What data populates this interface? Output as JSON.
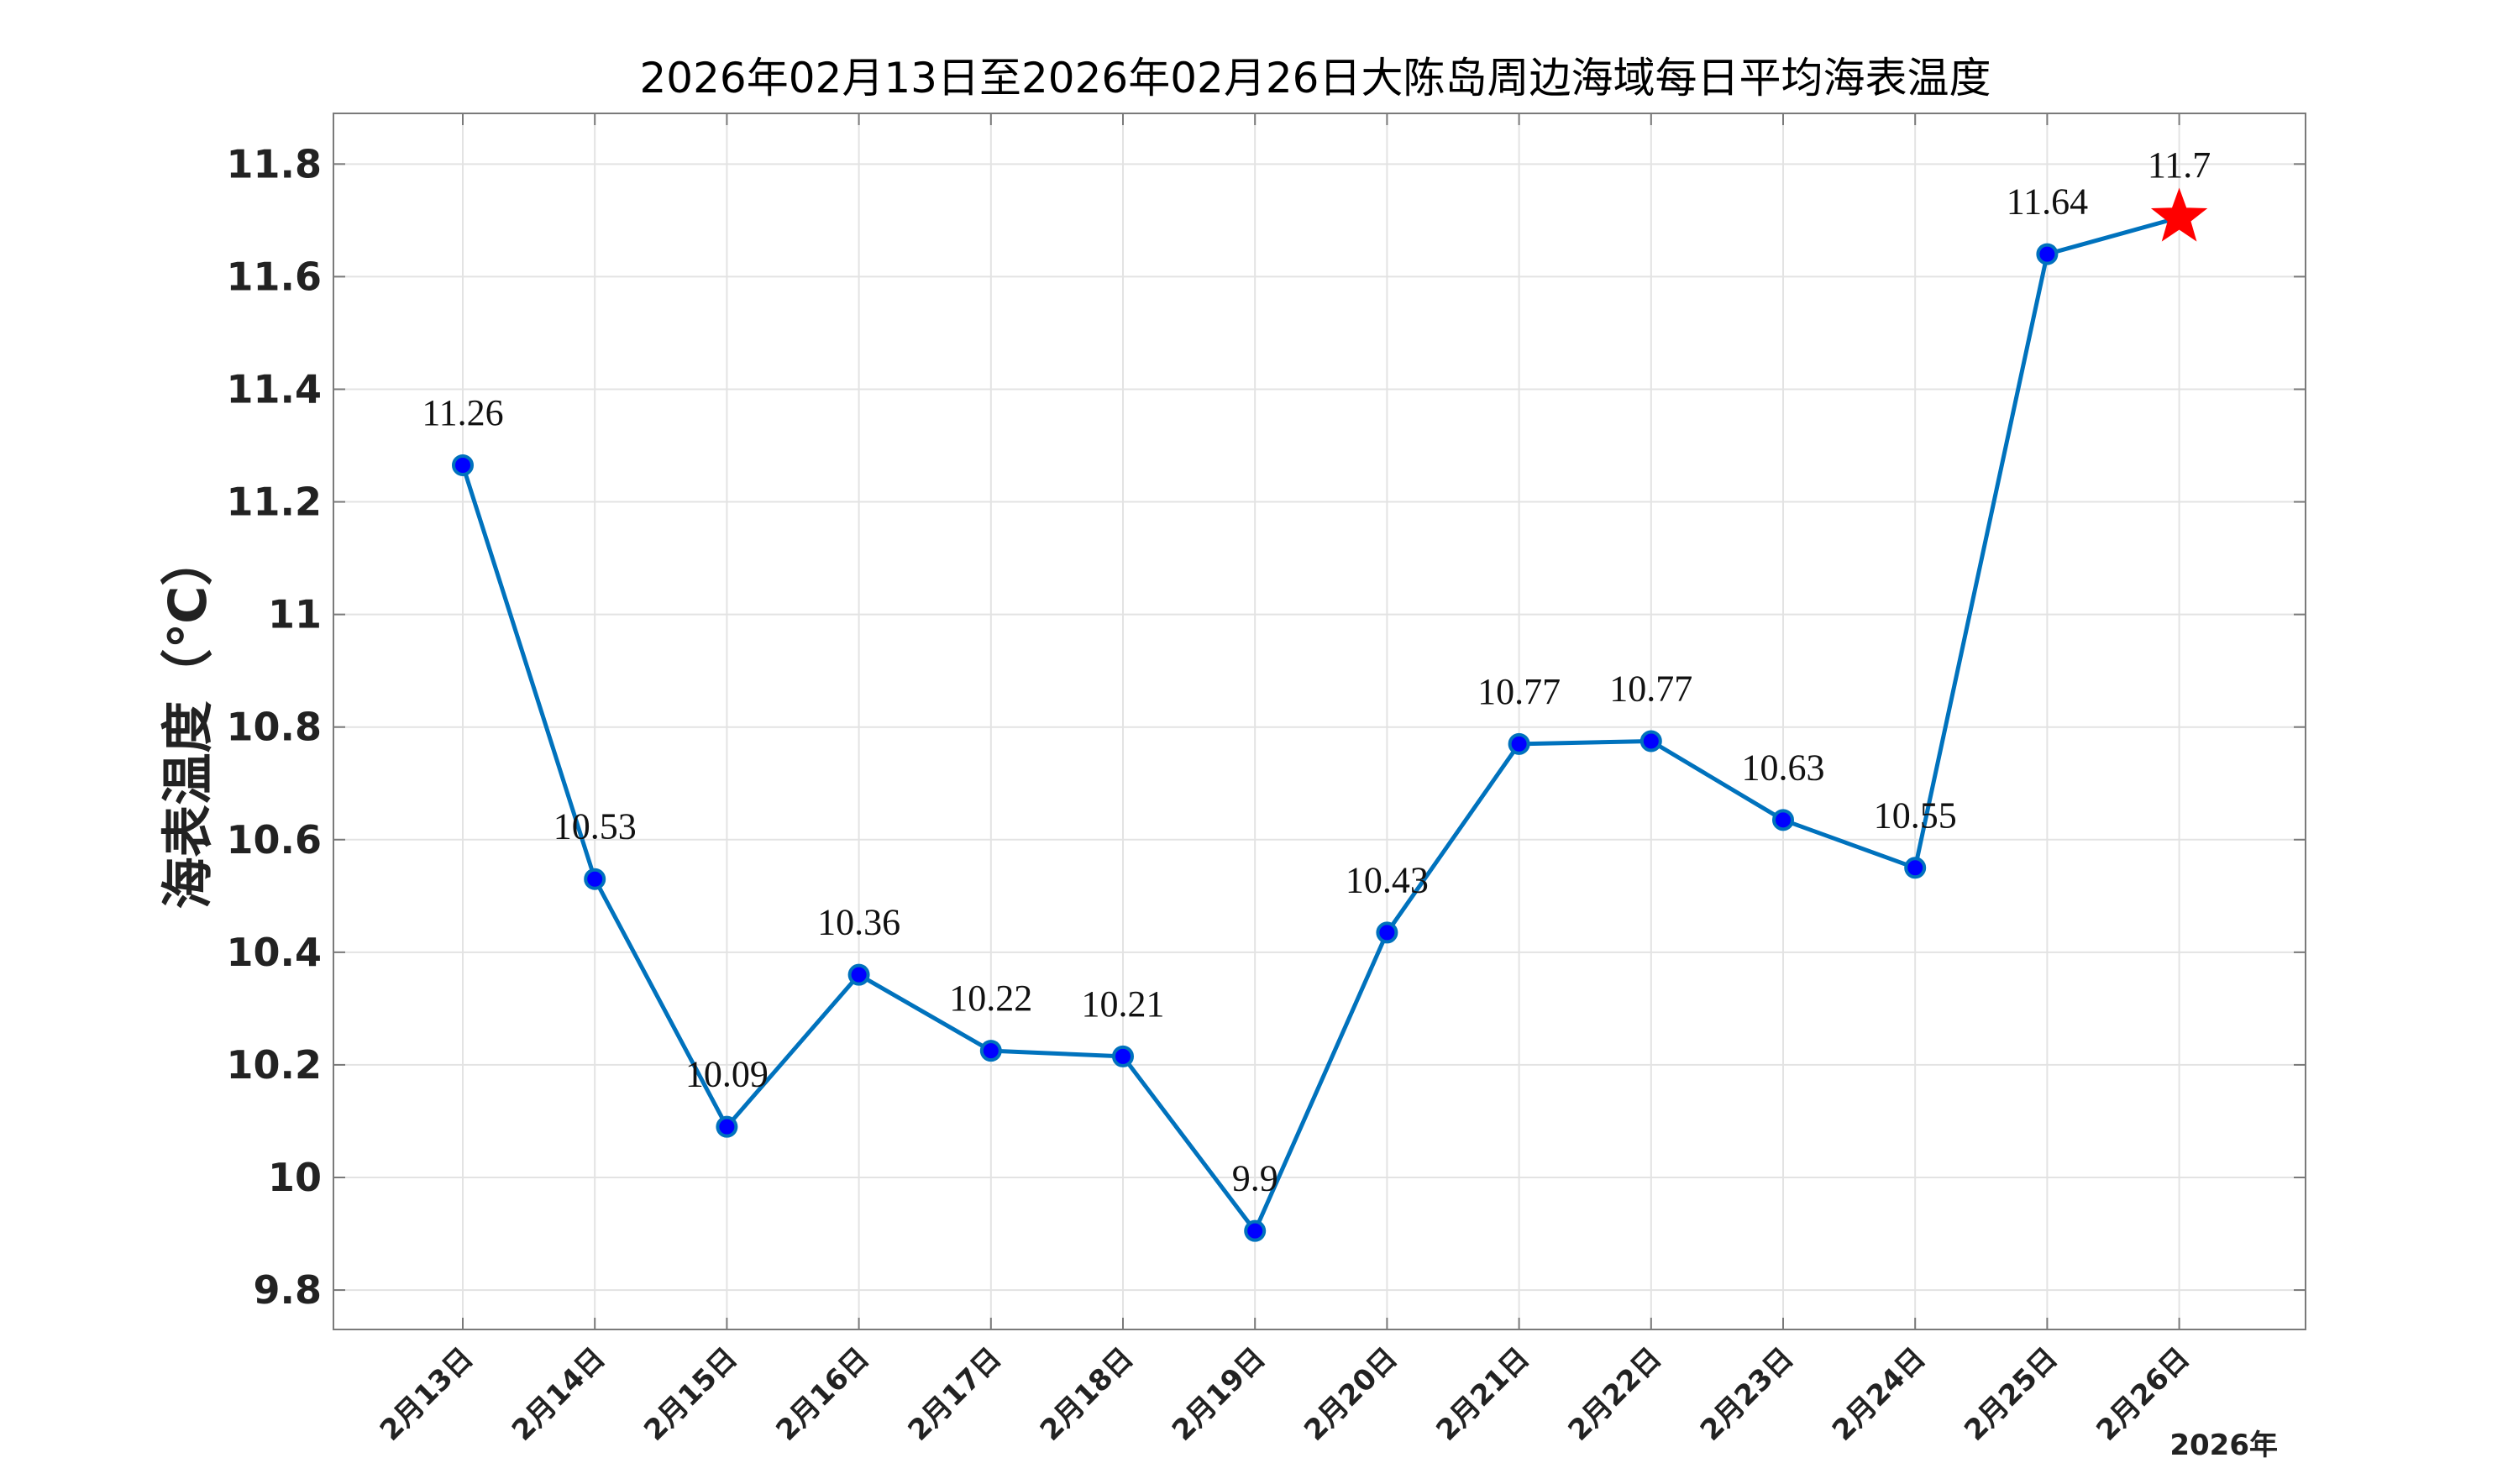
{
  "chart_data": {
    "type": "line",
    "title": "2026年02月13日至2026年02月26日大陈岛周边海域每日平均海表温度",
    "xlabel": "",
    "ylabel": "海表温度（℃）",
    "year_label": "2026年",
    "categories": [
      "2月13日",
      "2月14日",
      "2月15日",
      "2月16日",
      "2月17日",
      "2月18日",
      "2月19日",
      "2月20日",
      "2月21日",
      "2月22日",
      "2月23日",
      "2月24日",
      "2月25日",
      "2月26日"
    ],
    "series": [
      {
        "values": [
          11.265,
          10.53,
          10.09,
          10.36,
          10.225,
          10.215,
          9.905,
          10.435,
          10.77,
          10.775,
          10.635,
          10.55,
          11.64,
          11.705
        ],
        "labels": [
          "11.26",
          "10.53",
          "10.09",
          "10.36",
          "10.22",
          "10.21",
          "9.9",
          "10.43",
          "10.77",
          "10.77",
          "10.63",
          "10.55",
          "11.64",
          "11.7"
        ],
        "color": "#0072BD",
        "marker_fill": "#0000FF",
        "highlight_last": true,
        "highlight_color": "#FF0000"
      }
    ],
    "ylim": [
      9.73,
      11.89
    ],
    "yticks": [
      9.8,
      10,
      10.2,
      10.4,
      10.6,
      10.8,
      11,
      11.2,
      11.4,
      11.6,
      11.8
    ],
    "ytick_labels": [
      "9.8",
      "10",
      "10.2",
      "10.4",
      "10.6",
      "10.8",
      "11",
      "11.2",
      "11.4",
      "11.6",
      "11.8"
    ],
    "grid": true
  }
}
